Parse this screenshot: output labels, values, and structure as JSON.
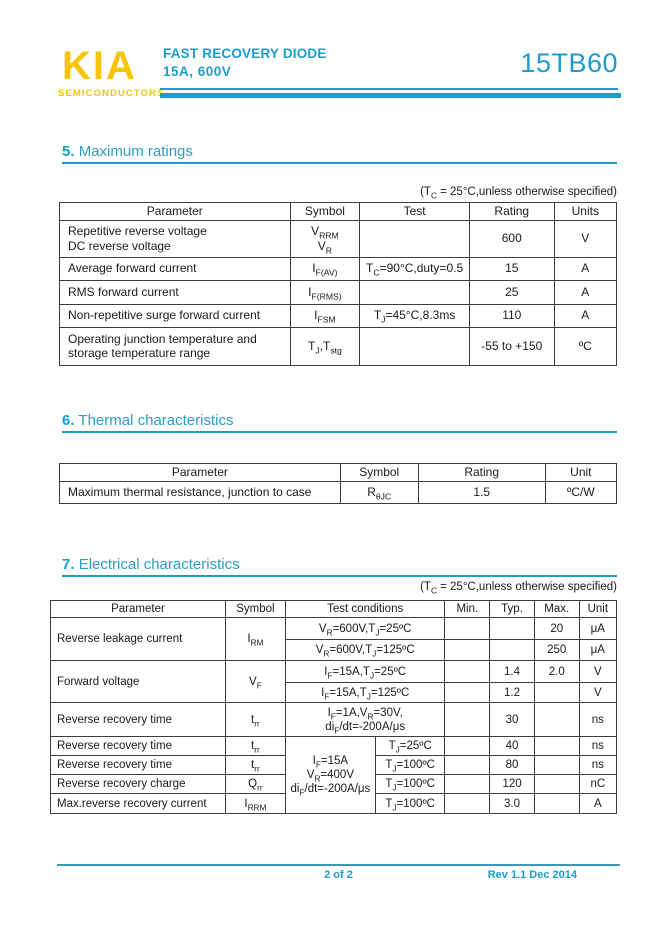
{
  "colors": {
    "accent_cyan": "#1B9DCC",
    "footer_rule_cyan": "#3E96B8",
    "logo_yellow": "#F8C408",
    "table_border": "#3D3D3D",
    "body_text": "#1A1A1A"
  },
  "header": {
    "logo_text": "KIA",
    "logo_subtext": "SEMICONDUCTORS",
    "product_title": "FAST RECOVERY DIODE",
    "product_subtitle": "15A, 600V",
    "part_number": "15TB60"
  },
  "sections": {
    "maximum_ratings": {
      "number": "5.",
      "title": "Maximum ratings",
      "note": "(T_{C} = 25°C,unless otherwise specified)",
      "table": {
        "header": [
          {
            "t": "Parameter"
          },
          {
            "t": "Symbol"
          },
          {
            "t": "Test"
          },
          {
            "t": "Rating"
          },
          {
            "t": "Units"
          }
        ],
        "col_widths": [
          "41.4%",
          "12.5%",
          "19.7%",
          "15.2%",
          "11.2%"
        ],
        "rows": [
          [
            {
              "t": "Repetitive reverse voltage\nDC reverse voltage",
              "al": "left"
            },
            {
              "t": "V_{RRM}\nV_{R}"
            },
            {
              "t": ""
            },
            {
              "t": "600"
            },
            {
              "t": "V"
            }
          ],
          [
            {
              "t": "Average forward current",
              "al": "left"
            },
            {
              "t": "I_{F(AV)}"
            },
            {
              "t": "T_{C}=90°C,duty=0.5"
            },
            {
              "t": "15"
            },
            {
              "t": "A"
            }
          ],
          [
            {
              "t": "RMS forward current",
              "al": "left"
            },
            {
              "t": "I_{F(RMS)}"
            },
            {
              "t": ""
            },
            {
              "t": "25"
            },
            {
              "t": "A"
            }
          ],
          [
            {
              "t": "Non-repetitive surge forward current",
              "al": "left"
            },
            {
              "t": "I_{FSM}"
            },
            {
              "t": "T_{J}=45°C,8.3ms"
            },
            {
              "t": "110"
            },
            {
              "t": "A"
            }
          ],
          [
            {
              "t": "Operating junction temperature and\nstorage temperature range",
              "al": "left"
            },
            {
              "t": "T_{J},T_{stg}"
            },
            {
              "t": ""
            },
            {
              "t": "-55 to +150"
            },
            {
              "t": "ºC"
            }
          ]
        ]
      }
    },
    "thermal": {
      "number": "6.",
      "title": "Thermal characteristics",
      "table": {
        "header": [
          {
            "t": "Parameter"
          },
          {
            "t": "Symbol"
          },
          {
            "t": "Rating"
          },
          {
            "t": "Unit"
          }
        ],
        "col_widths": [
          "50.4%",
          "14%",
          "22.8%",
          "12.8%"
        ],
        "rows": [
          [
            {
              "t": "Maximum thermal resistance, junction to case",
              "al": "left"
            },
            {
              "t": "R_{θJC}"
            },
            {
              "t": "1.5"
            },
            {
              "t": "ºC/W"
            }
          ]
        ]
      }
    },
    "electrical": {
      "number": "7.",
      "title": "Electrical characteristics",
      "note": "(T_{C} = 25°C,unless otherwise specified)",
      "table": {
        "header": [
          {
            "t": "Parameter"
          },
          {
            "t": "Symbol"
          },
          {
            "t": "Test conditions",
            "cs": 2
          },
          {
            "t": "Min."
          },
          {
            "t": "Typ."
          },
          {
            "t": "Max."
          },
          {
            "t": "Unit"
          }
        ],
        "col_widths": [
          "30.9%",
          "10.6%",
          "15.9%",
          "12.3%",
          "7.9%",
          "7.9%",
          "7.9%",
          "6.6%"
        ],
        "rows": [
          [
            {
              "t": "Reverse leakage current",
              "al": "left",
              "rs": 2
            },
            {
              "t": "I_{RM}",
              "rs": 2
            },
            {
              "t": "V_{R}=600V,T_{J}=25ºC",
              "cs": 2
            },
            {
              "t": ""
            },
            {
              "t": ""
            },
            {
              "t": "20"
            },
            {
              "t": "μA"
            }
          ],
          [
            {
              "t": "V_{R}=600V,T_{J}=125ºC",
              "cs": 2
            },
            {
              "t": ""
            },
            {
              "t": ""
            },
            {
              "t": "250"
            },
            {
              "t": "μA"
            }
          ],
          [
            {
              "t": "Forward voltage",
              "al": "left",
              "rs": 2
            },
            {
              "t": "V_{F}",
              "rs": 2
            },
            {
              "t": "I_{F}=15A,T_{J}=25ºC",
              "cs": 2
            },
            {
              "t": ""
            },
            {
              "t": "1.4"
            },
            {
              "t": "2.0"
            },
            {
              "t": "V"
            }
          ],
          [
            {
              "t": "I_{F}=15A,T_{J}=125ºC",
              "cs": 2
            },
            {
              "t": ""
            },
            {
              "t": "1.2"
            },
            {
              "t": ""
            },
            {
              "t": "V"
            }
          ],
          [
            {
              "t": "Reverse recovery time",
              "al": "left"
            },
            {
              "t": "t_{rr}"
            },
            {
              "t": "I_{F}=1A,V_{R}=30V,\ndi_{F}/dt=-200A/μs",
              "cs": 2
            },
            {
              "t": ""
            },
            {
              "t": "30"
            },
            {
              "t": ""
            },
            {
              "t": "ns"
            }
          ],
          [
            {
              "t": "Reverse recovery time",
              "al": "left"
            },
            {
              "t": "t_{rr}"
            },
            {
              "t": "I_{F}=15A\nV_{R}=400V\ndi_{F}/dt=-200A/μs",
              "rs": 4
            },
            {
              "t": "T_{J}=25ºC"
            },
            {
              "t": ""
            },
            {
              "t": "40"
            },
            {
              "t": ""
            },
            {
              "t": "ns"
            }
          ],
          [
            {
              "t": "Reverse recovery time",
              "al": "left"
            },
            {
              "t": "t_{rr}"
            },
            {
              "t": "T_{J}=100ºC"
            },
            {
              "t": ""
            },
            {
              "t": "80"
            },
            {
              "t": ""
            },
            {
              "t": "ns"
            }
          ],
          [
            {
              "t": "Reverse recovery charge",
              "al": "left"
            },
            {
              "t": "Q_{rr}"
            },
            {
              "t": "T_{J}=100ºC"
            },
            {
              "t": ""
            },
            {
              "t": "120"
            },
            {
              "t": ""
            },
            {
              "t": "nC"
            }
          ],
          [
            {
              "t": "Max.reverse recovery current",
              "al": "left"
            },
            {
              "t": "I_{RRM}"
            },
            {
              "t": "T_{J}=100ºC"
            },
            {
              "t": ""
            },
            {
              "t": "3.0"
            },
            {
              "t": ""
            },
            {
              "t": "A"
            }
          ]
        ]
      }
    }
  },
  "footer": {
    "page_info": "2 of 2",
    "revision": "Rev 1.1 Dec 2014"
  }
}
